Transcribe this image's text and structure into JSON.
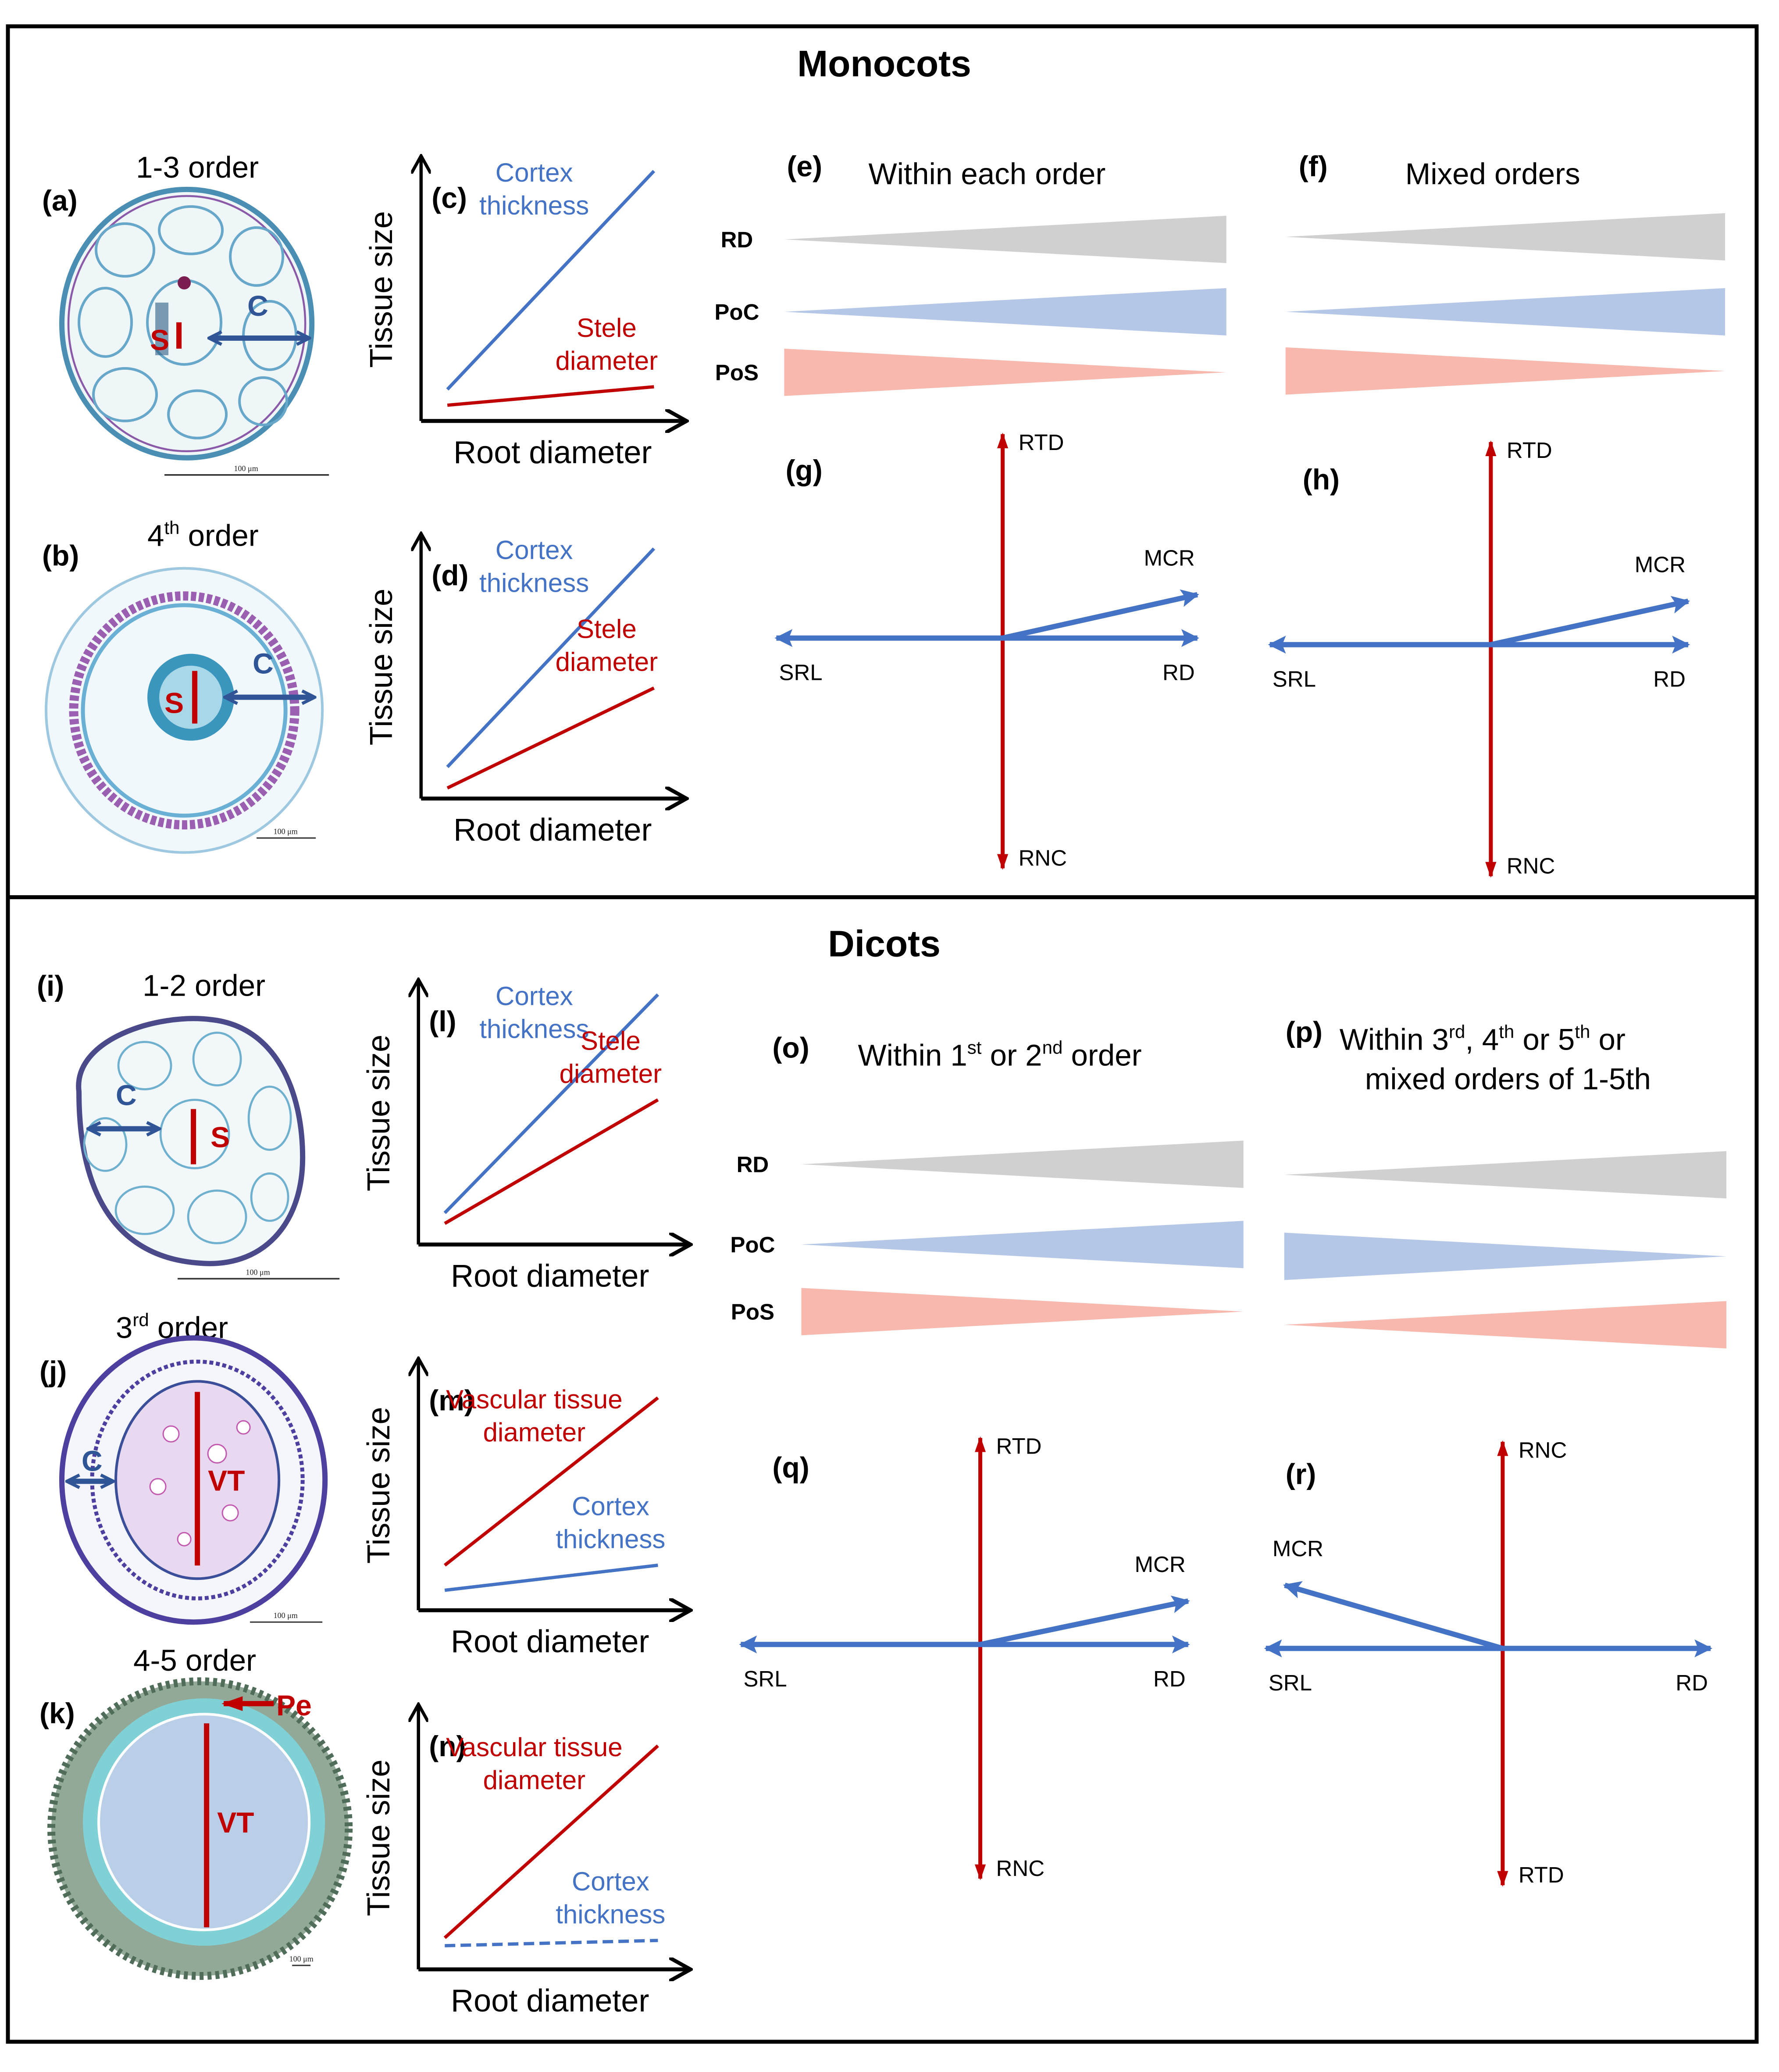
{
  "colors": {
    "frame": "#000000",
    "red": "#C00000",
    "blue": "#4472C4",
    "dark_blue": "#2F5597",
    "rd_triangle": "#D0D0D0",
    "poc_triangle": "#B4C7E7",
    "pos_triangle": "#F8B8AE"
  },
  "monocots": {
    "title": "Monocots",
    "micrographs": [
      {
        "panel": "(a)",
        "order_label": "1-3 order",
        "order_sup": "",
        "order_tail": "",
        "labels": {
          "stele": "S",
          "cortex": "C"
        },
        "scale_bar": "100 μm"
      },
      {
        "panel": "(b)",
        "order_label": "4",
        "order_sup": "th",
        "order_tail": " order",
        "labels": {
          "stele": "S",
          "cortex": "C"
        },
        "scale_bar": "100 μm"
      }
    ],
    "tissue_plots": [
      {
        "panel": "(c)",
        "ylabel": "Tissue size",
        "xlabel": "Root diameter",
        "lines": [
          {
            "name_line1": "Cortex",
            "name_line2": "thickness",
            "color": "#4472C4",
            "style": "solid",
            "start": 0.12,
            "end": 0.95
          },
          {
            "name_line1": "Stele",
            "name_line2": "diameter",
            "color": "#C00000",
            "style": "solid",
            "start": 0.06,
            "end": 0.13
          }
        ]
      },
      {
        "panel": "(d)",
        "ylabel": "Tissue size",
        "xlabel": "Root diameter",
        "lines": [
          {
            "name_line1": "Cortex",
            "name_line2": "thickness",
            "color": "#4472C4",
            "style": "solid",
            "start": 0.12,
            "end": 0.95
          },
          {
            "name_line1": "Stele",
            "name_line2": "diameter",
            "color": "#C00000",
            "style": "solid",
            "start": 0.04,
            "end": 0.42
          }
        ]
      }
    ],
    "trend_columns": [
      {
        "panel": "(e)",
        "title": "Within each order",
        "rows": [
          {
            "label": "RD",
            "direction": "increasing"
          },
          {
            "label": "PoC",
            "direction": "increasing"
          },
          {
            "label": "PoS",
            "direction": "decreasing"
          }
        ]
      },
      {
        "panel": "(f)",
        "title": "Mixed orders",
        "rows": [
          {
            "label": "RD",
            "direction": "increasing"
          },
          {
            "label": "PoC",
            "direction": "increasing"
          },
          {
            "label": "PoS",
            "direction": "decreasing"
          }
        ]
      }
    ],
    "pca_plots": [
      {
        "panel": "(g)",
        "up": "RTD",
        "down": "RNC",
        "left": "SRL",
        "right": "RD",
        "mcr": "MCR",
        "mcr_direction": "upper-right"
      },
      {
        "panel": "(h)",
        "up": "RTD",
        "down": "RNC",
        "left": "SRL",
        "right": "RD",
        "mcr": "MCR",
        "mcr_direction": "upper-right"
      }
    ]
  },
  "dicots": {
    "title": "Dicots",
    "micrographs": [
      {
        "panel": "(i)",
        "order_label": "1-2 order",
        "order_sup": "",
        "order_tail": "",
        "labels": {
          "stele": "S",
          "cortex": "C"
        },
        "scale_bar": "100 μm"
      },
      {
        "panel": "(j)",
        "order_label": "3",
        "order_sup": "rd",
        "order_tail": " order",
        "labels": {
          "vascular": "VT",
          "cortex": "C"
        },
        "scale_bar": "100 μm"
      },
      {
        "panel": "(k)",
        "order_label": "4-5 order",
        "order_sup": "",
        "order_tail": "",
        "labels": {
          "vascular": "VT",
          "periderm": "Pe"
        },
        "scale_bar": "100 μm"
      }
    ],
    "tissue_plots": [
      {
        "panel": "(l)",
        "ylabel": "Tissue size",
        "xlabel": "Root diameter",
        "lines": [
          {
            "name_line1": "Cortex",
            "name_line2": "thickness",
            "color": "#4472C4",
            "style": "solid",
            "start": 0.12,
            "end": 0.95
          },
          {
            "name_line1": "Stele",
            "name_line2": "diameter",
            "color": "#C00000",
            "style": "solid",
            "start": 0.08,
            "end": 0.55
          }
        ]
      },
      {
        "panel": "(m)",
        "ylabel": "Tissue size",
        "xlabel": "Root diameter",
        "lines": [
          {
            "name_line1": "Vascular tissue",
            "name_line2": "diameter",
            "color": "#C00000",
            "style": "solid",
            "start": 0.18,
            "end": 0.85
          },
          {
            "name_line1": "Cortex",
            "name_line2": "thickness",
            "color": "#4472C4",
            "style": "solid",
            "start": 0.08,
            "end": 0.18
          }
        ]
      },
      {
        "panel": "(n)",
        "ylabel": "Tissue size",
        "xlabel": "Root diameter",
        "lines": [
          {
            "name_line1": "Vascular tissue",
            "name_line2": "diameter",
            "color": "#C00000",
            "style": "solid",
            "start": 0.12,
            "end": 0.85
          },
          {
            "name_line1": "Cortex",
            "name_line2": "thickness",
            "color": "#4472C4",
            "style": "dashed",
            "start": 0.09,
            "end": 0.11
          }
        ]
      }
    ],
    "trend_columns": [
      {
        "panel": "(o)",
        "title_parts": [
          "Within 1",
          "st",
          " or 2",
          "nd",
          " order"
        ],
        "rows": [
          {
            "label": "RD",
            "direction": "increasing"
          },
          {
            "label": "PoC",
            "direction": "increasing"
          },
          {
            "label": "PoS",
            "direction": "decreasing"
          }
        ]
      },
      {
        "panel": "(p)",
        "title_parts": [
          "Within 3",
          "rd",
          ", 4",
          "th",
          "  or 5",
          "th",
          " or"
        ],
        "title_line2": "mixed orders of 1-5th",
        "rows": [
          {
            "label": "RD",
            "direction": "increasing"
          },
          {
            "label": "PoC",
            "direction": "decreasing"
          },
          {
            "label": "PoS",
            "direction": "increasing"
          }
        ]
      }
    ],
    "pca_plots": [
      {
        "panel": "(q)",
        "up": "RTD",
        "down": "RNC",
        "left": "SRL",
        "right": "RD",
        "mcr": "MCR",
        "mcr_direction": "upper-right"
      },
      {
        "panel": "(r)",
        "up": "RNC",
        "down": "RTD",
        "left": "SRL",
        "right": "RD",
        "mcr": "MCR",
        "mcr_direction": "upper-left"
      }
    ]
  }
}
